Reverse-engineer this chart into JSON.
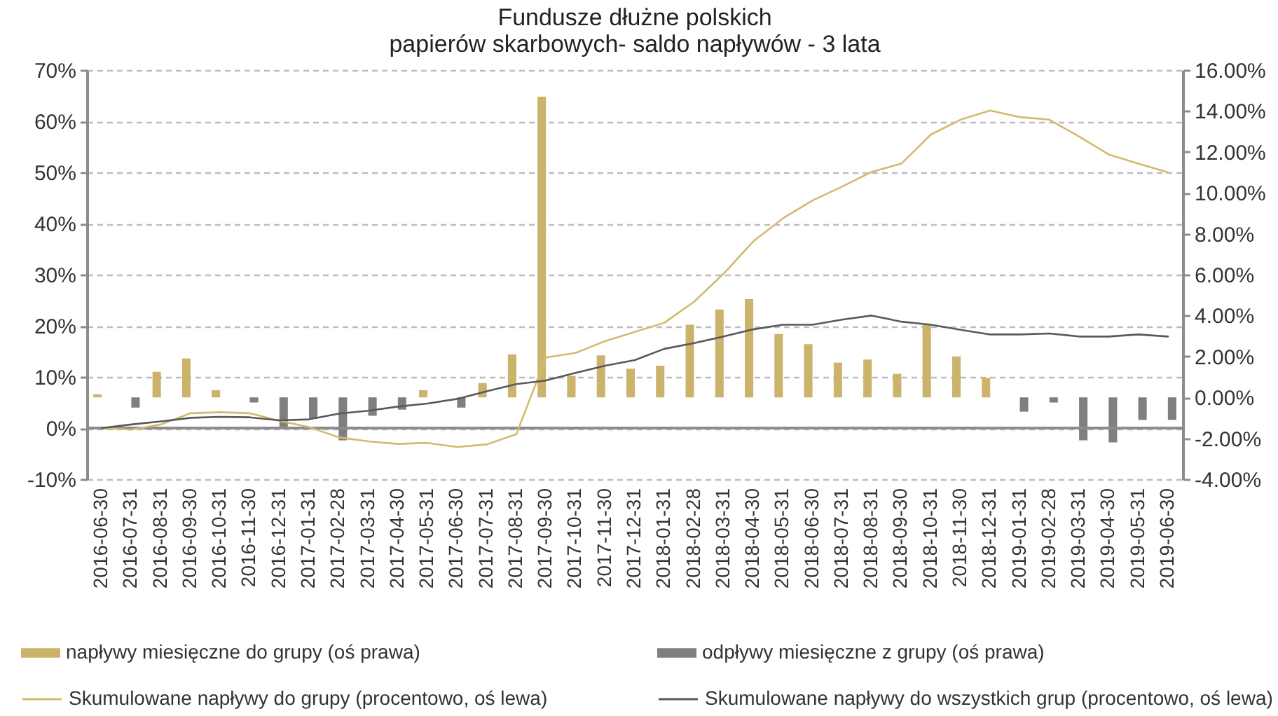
{
  "chart_data": {
    "type": "bar",
    "title": "Fundusze dłużne polskich\npapierów skarbowych-  saldo napływów - 3 lata",
    "categories": [
      "2016-06-30",
      "2016-07-31",
      "2016-08-31",
      "2016-09-30",
      "2016-10-31",
      "2016-11-30",
      "2016-12-31",
      "2017-01-31",
      "2017-02-28",
      "2017-03-31",
      "2017-04-30",
      "2017-05-31",
      "2017-06-30",
      "2017-07-31",
      "2017-08-31",
      "2017-09-30",
      "2017-10-31",
      "2017-11-30",
      "2017-12-31",
      "2018-01-31",
      "2018-02-28",
      "2018-03-31",
      "2018-04-30",
      "2018-05-31",
      "2018-06-30",
      "2018-07-31",
      "2018-08-31",
      "2018-09-30",
      "2018-10-31",
      "2018-11-30",
      "2018-12-31",
      "2019-01-31",
      "2019-02-28",
      "2019-03-31",
      "2019-04-30",
      "2019-05-31",
      "2019-06-30"
    ],
    "series": [
      {
        "name": "napływy miesięczne do grupy (oś prawa)",
        "axis": "y2",
        "color": "#cbb36b",
        "values": [
          0.15,
          null,
          1.25,
          1.9,
          0.35,
          null,
          null,
          null,
          null,
          null,
          null,
          0.35,
          null,
          0.7,
          2.1,
          14.7,
          1.05,
          2.05,
          1.4,
          1.55,
          3.55,
          4.3,
          4.8,
          3.1,
          2.6,
          1.7,
          1.85,
          1.15,
          3.55,
          2.0,
          0.95,
          null,
          null,
          null,
          null,
          null,
          null
        ]
      },
      {
        "name": "odpływy miesięczne z grupy (oś prawa)",
        "axis": "y2",
        "color": "#7f7f7f",
        "values": [
          null,
          -0.5,
          null,
          null,
          null,
          -0.25,
          -1.5,
          -1.05,
          -2.1,
          -0.9,
          -0.6,
          null,
          -0.5,
          null,
          null,
          null,
          null,
          null,
          null,
          null,
          null,
          null,
          null,
          null,
          null,
          null,
          null,
          null,
          null,
          null,
          null,
          -0.7,
          -0.25,
          -2.1,
          -2.2,
          -1.1,
          -1.1
        ]
      },
      {
        "name": "Skumulowane napływy do grupy (procentowo, oś lewa)",
        "type": "line",
        "color": "#d4ba6c",
        "values": [
          0,
          -0.3,
          0.7,
          2.9,
          3.1,
          2.9,
          1.4,
          0.2,
          -1.8,
          -2.6,
          -3.1,
          -2.9,
          -3.7,
          -3.2,
          -1.2,
          13.8,
          14.7,
          17.0,
          18.8,
          20.6,
          24.7,
          30.2,
          36.5,
          41.0,
          44.5,
          47.2,
          50.1,
          51.7,
          57.4,
          60.3,
          62.1,
          60.8,
          60.3,
          57.0,
          53.5,
          51.7,
          50.0
        ]
      },
      {
        "name": "Skumulowane napływy do wszystkich grup (procentowo, oś lewa)",
        "type": "line",
        "color": "#595959",
        "values": [
          0,
          0.7,
          1.3,
          2.0,
          2.2,
          2.1,
          1.5,
          1.7,
          2.8,
          3.4,
          4.2,
          4.8,
          5.7,
          7.2,
          8.6,
          9.3,
          10.8,
          12.2,
          13.3,
          15.5,
          16.6,
          17.9,
          19.3,
          20.2,
          20.2,
          21.2,
          22.0,
          20.8,
          20.2,
          19.2,
          18.3,
          18.3,
          18.5,
          17.9,
          17.9,
          18.3,
          17.9
        ]
      }
    ],
    "ylim": [
      -10,
      70
    ],
    "yticks": [
      {
        "value": -10,
        "label": "-10%"
      },
      {
        "value": 0,
        "label": "0%"
      },
      {
        "value": 10,
        "label": "10%"
      },
      {
        "value": 20,
        "label": "20%"
      },
      {
        "value": 30,
        "label": "30%"
      },
      {
        "value": 40,
        "label": "40%"
      },
      {
        "value": 50,
        "label": "50%"
      },
      {
        "value": 60,
        "label": "60%"
      },
      {
        "value": 70,
        "label": "70%"
      }
    ],
    "y2lim": [
      -4,
      16
    ],
    "y2ticks": [
      {
        "value": -4,
        "label": "-4.00%"
      },
      {
        "value": -2,
        "label": "-2.00%"
      },
      {
        "value": 0,
        "label": "0.00%"
      },
      {
        "value": 2,
        "label": "2.00%"
      },
      {
        "value": 4,
        "label": "4.00%"
      },
      {
        "value": 6,
        "label": "6.00%"
      },
      {
        "value": 8,
        "label": "8.00%"
      },
      {
        "value": 10,
        "label": "10.00%"
      },
      {
        "value": 12,
        "label": "12.00%"
      },
      {
        "value": 14,
        "label": "14.00%"
      },
      {
        "value": 16,
        "label": "16.00%"
      }
    ],
    "ref_lines": [
      {
        "axis": "y",
        "value": 0,
        "color": "#8c8c8c"
      }
    ],
    "grid": "y",
    "legend": "bottom",
    "line_style": "solid"
  }
}
